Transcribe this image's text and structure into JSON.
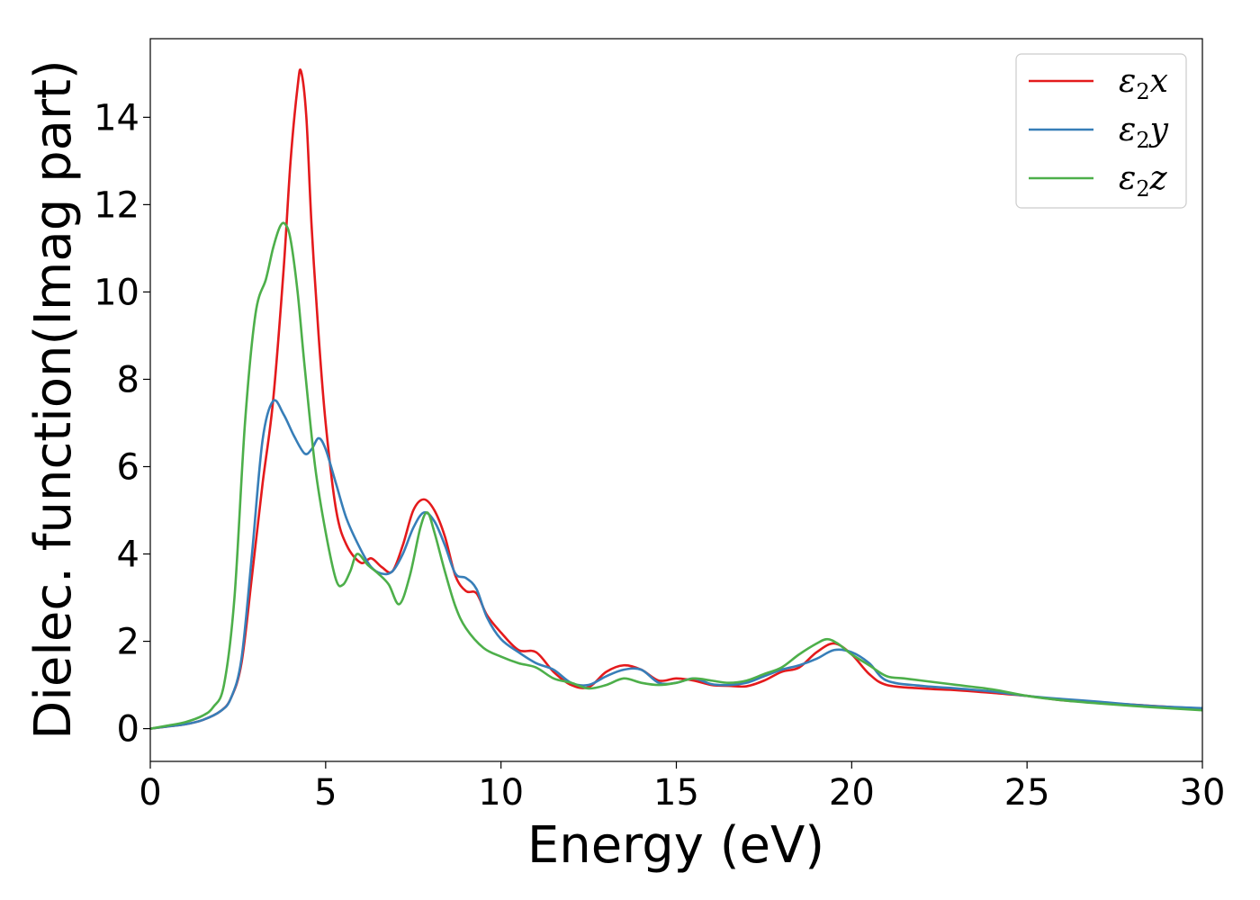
{
  "chart_data": {
    "type": "line",
    "xlabel": "Energy (eV)",
    "ylabel": "Dielec. function(Imag part)",
    "xlim": [
      0,
      30
    ],
    "ylim": [
      -0.75,
      15.8
    ],
    "xticks": [
      "0",
      "5",
      "10",
      "15",
      "20",
      "25",
      "30"
    ],
    "yticks": [
      "0",
      "2",
      "4",
      "6",
      "8",
      "10",
      "12",
      "14"
    ],
    "grid": false,
    "legend_position": "top-right",
    "series": [
      {
        "name": "ε₂x",
        "legend_base": "ε",
        "legend_sub": "2",
        "legend_var": "x",
        "color": "#e41a1c",
        "x": [
          0,
          0.5,
          1,
          1.5,
          2,
          2.3,
          2.6,
          2.9,
          3.2,
          3.5,
          3.8,
          4.0,
          4.2,
          4.3,
          4.45,
          4.6,
          4.8,
          5.0,
          5.3,
          5.6,
          6.0,
          6.3,
          6.6,
          6.9,
          7.2,
          7.5,
          7.8,
          8.1,
          8.4,
          8.7,
          9.0,
          9.3,
          9.6,
          10.0,
          10.5,
          11.0,
          11.5,
          12.0,
          12.5,
          13.0,
          13.5,
          14.0,
          14.5,
          15.0,
          15.5,
          16.0,
          16.5,
          17.0,
          17.5,
          18.0,
          18.5,
          19.0,
          19.5,
          20.0,
          20.5,
          21.0,
          22.0,
          23.0,
          24.0,
          25.0,
          26.0,
          27.0,
          28.0,
          29.0,
          30.0
        ],
        "values": [
          0.0,
          0.05,
          0.1,
          0.2,
          0.4,
          0.7,
          1.5,
          3.5,
          5.6,
          7.5,
          10.5,
          13.0,
          14.7,
          15.05,
          14.0,
          11.5,
          9.0,
          7.0,
          5.0,
          4.2,
          3.8,
          3.9,
          3.7,
          3.6,
          4.2,
          5.0,
          5.25,
          5.0,
          4.4,
          3.5,
          3.15,
          3.1,
          2.6,
          2.2,
          1.8,
          1.75,
          1.3,
          1.0,
          0.95,
          1.3,
          1.45,
          1.35,
          1.1,
          1.15,
          1.1,
          1.0,
          0.98,
          0.97,
          1.1,
          1.3,
          1.4,
          1.75,
          1.95,
          1.7,
          1.25,
          1.0,
          0.92,
          0.88,
          0.82,
          0.75,
          0.65,
          0.6,
          0.55,
          0.5,
          0.45
        ]
      },
      {
        "name": "ε₂y",
        "legend_base": "ε",
        "legend_sub": "2",
        "legend_var": "y",
        "color": "#377eb8",
        "x": [
          0,
          0.5,
          1,
          1.5,
          2,
          2.3,
          2.6,
          2.9,
          3.2,
          3.5,
          3.8,
          4.1,
          4.4,
          4.6,
          4.8,
          5.0,
          5.3,
          5.6,
          6.0,
          6.3,
          6.6,
          6.9,
          7.2,
          7.5,
          7.8,
          8.1,
          8.4,
          8.7,
          9.0,
          9.3,
          9.6,
          10.0,
          10.5,
          11.0,
          11.5,
          12.0,
          12.5,
          13.0,
          13.5,
          14.0,
          14.5,
          15.0,
          15.5,
          16.0,
          16.5,
          17.0,
          17.5,
          18.0,
          18.5,
          19.0,
          19.5,
          20.0,
          20.5,
          21.0,
          22.0,
          23.0,
          24.0,
          25.0,
          26.0,
          27.0,
          28.0,
          29.0,
          30.0
        ],
        "values": [
          0.0,
          0.05,
          0.1,
          0.2,
          0.4,
          0.7,
          1.6,
          4.0,
          6.6,
          7.5,
          7.2,
          6.7,
          6.3,
          6.4,
          6.65,
          6.4,
          5.6,
          4.8,
          4.1,
          3.7,
          3.55,
          3.6,
          4.0,
          4.6,
          4.95,
          4.75,
          4.2,
          3.55,
          3.45,
          3.2,
          2.55,
          2.05,
          1.75,
          1.5,
          1.35,
          1.05,
          1.0,
          1.2,
          1.35,
          1.35,
          1.05,
          1.05,
          1.15,
          1.02,
          1.0,
          1.05,
          1.2,
          1.35,
          1.45,
          1.6,
          1.8,
          1.75,
          1.5,
          1.1,
          0.98,
          0.92,
          0.85,
          0.75,
          0.68,
          0.62,
          0.55,
          0.5,
          0.47
        ]
      },
      {
        "name": "ε₂z",
        "legend_base": "ε",
        "legend_sub": "2",
        "legend_var": "z",
        "color": "#4daf4a",
        "x": [
          0,
          0.5,
          1,
          1.5,
          1.8,
          2.1,
          2.4,
          2.7,
          3.0,
          3.3,
          3.5,
          3.7,
          3.85,
          4.0,
          4.2,
          4.4,
          4.7,
          5.0,
          5.3,
          5.5,
          5.7,
          5.9,
          6.2,
          6.5,
          6.8,
          7.1,
          7.4,
          7.7,
          7.9,
          8.1,
          8.4,
          8.7,
          9.0,
          9.5,
          10.0,
          10.5,
          11.0,
          11.5,
          12.0,
          12.5,
          13.0,
          13.5,
          14.0,
          14.5,
          15.0,
          15.5,
          16.0,
          16.5,
          17.0,
          17.5,
          18.0,
          18.5,
          19.0,
          19.3,
          19.6,
          20.0,
          20.5,
          21.0,
          21.5,
          22.0,
          23.0,
          24.0,
          25.0,
          26.0,
          27.0,
          28.0,
          29.0,
          30.0
        ],
        "values": [
          0.0,
          0.07,
          0.15,
          0.3,
          0.5,
          1.0,
          3.0,
          7.0,
          9.5,
          10.3,
          11.0,
          11.5,
          11.55,
          11.2,
          10.0,
          8.3,
          6.0,
          4.5,
          3.4,
          3.3,
          3.6,
          4.0,
          3.75,
          3.55,
          3.3,
          2.85,
          3.5,
          4.6,
          4.95,
          4.5,
          3.6,
          2.8,
          2.3,
          1.85,
          1.65,
          1.5,
          1.4,
          1.15,
          1.05,
          0.92,
          1.0,
          1.15,
          1.05,
          1.0,
          1.05,
          1.15,
          1.1,
          1.05,
          1.1,
          1.25,
          1.4,
          1.7,
          1.95,
          2.05,
          1.95,
          1.7,
          1.45,
          1.2,
          1.15,
          1.1,
          1.0,
          0.9,
          0.75,
          0.65,
          0.58,
          0.52,
          0.47,
          0.42
        ]
      }
    ]
  }
}
